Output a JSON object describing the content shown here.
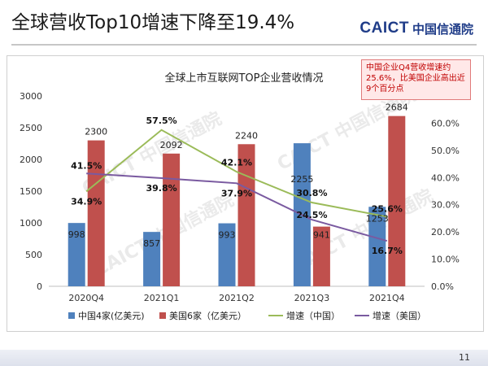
{
  "slide": {
    "title": "全球营收Top10增速下降至19.4%",
    "logo_latin": "CAICT",
    "logo_cn": "中国信通院",
    "page_number": "11",
    "watermark": "CAICT 中国信通院"
  },
  "callout": {
    "text": "中国企业Q4营收增速约25.6%，比美国企业高出近9个百分点"
  },
  "colors": {
    "china_bar": "#4f81bd",
    "us_bar": "#c0504d",
    "china_growth": "#9bbb59",
    "us_growth": "#7a5aa0"
  },
  "chart_data": {
    "type": "bar",
    "title": "全球上市互联网TOP企业营收情况",
    "categories": [
      "2020Q4",
      "2021Q1",
      "2021Q2",
      "2021Q3",
      "2021Q4"
    ],
    "left_axis": {
      "ylim": [
        0,
        3000
      ],
      "ticks": [
        "0",
        "500",
        "1000",
        "1500",
        "2000",
        "2500",
        "3000"
      ]
    },
    "right_axis": {
      "ylim": [
        0,
        70
      ],
      "ticks": [
        "0.0%",
        "10.0%",
        "20.0%",
        "30.0%",
        "40.0%",
        "50.0%",
        "60.0%"
      ]
    },
    "series": [
      {
        "name": "中国4家(亿美元)",
        "type": "bar",
        "axis": "left",
        "values": [
          998,
          857,
          993,
          2255,
          1253
        ],
        "labels": [
          "998",
          "857",
          "993",
          "2255",
          "1253"
        ]
      },
      {
        "name": "美国6家（亿美元）",
        "type": "bar",
        "axis": "left",
        "values": [
          2300,
          2092,
          2240,
          941,
          2684
        ],
        "labels": [
          "2300",
          "2092",
          "2240",
          "941",
          "2684"
        ]
      },
      {
        "name": "增速（中国）",
        "type": "line",
        "axis": "right",
        "values": [
          34.9,
          57.5,
          42.1,
          30.8,
          25.6
        ],
        "labels": [
          "34.9%",
          "57.5%",
          "42.1%",
          "30.8%",
          "25.6%"
        ]
      },
      {
        "name": "增速（美国）",
        "type": "line",
        "axis": "right",
        "values": [
          41.5,
          39.8,
          37.9,
          24.5,
          16.7
        ],
        "labels": [
          "41.5%",
          "39.8%",
          "37.9%",
          "24.5%",
          "16.7%"
        ]
      }
    ],
    "legend_position": "bottom",
    "grid": false
  }
}
